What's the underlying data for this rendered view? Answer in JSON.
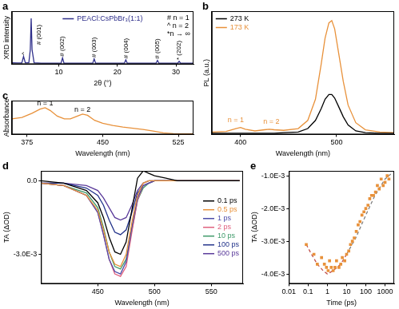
{
  "chart_data": [
    {
      "title": "a",
      "type": "line",
      "x_label": "2θ (°)",
      "y_label": "XRD intensity",
      "x": [
        2,
        3,
        3.7,
        4.0,
        4.3,
        4.9,
        5.15,
        5.3,
        5.45,
        5.8,
        7,
        9,
        10.4,
        10.65,
        10.9,
        13,
        15.8,
        16.05,
        16.3,
        19,
        21.2,
        21.45,
        21.7,
        24,
        26.6,
        26.85,
        27.1,
        29,
        30.3,
        30.55,
        30.8,
        33
      ],
      "series": [
        {
          "name": "PEACl:CsPbBr₃(1:1)",
          "color": "#2e2e8a",
          "values": [
            3,
            2.5,
            2.5,
            16,
            3,
            3,
            30,
            95,
            30,
            3,
            2,
            2,
            2,
            13,
            2,
            2,
            2,
            11,
            2,
            2,
            2,
            9,
            2,
            2,
            2,
            8,
            2,
            2,
            2,
            6,
            2,
            2
          ]
        }
      ],
      "xlim": [
        2,
        33
      ],
      "xticks": [
        10,
        20,
        30
      ],
      "ylim": [
        0,
        110
      ],
      "yticks": [],
      "tick_labels": "x",
      "grid": false,
      "legend": "upper center",
      "annotations": [
        {
          "text": "^",
          "x": 4.0,
          "y": 19
        },
        {
          "text": "# (001)",
          "x": 6.6,
          "y": 40
        },
        {
          "text": "# (002)",
          "x": 10.65,
          "y": 16
        },
        {
          "text": "# (003)",
          "x": 16.05,
          "y": 14
        },
        {
          "text": "# (004)",
          "x": 21.45,
          "y": 12
        },
        {
          "text": "# (005)",
          "x": 26.85,
          "y": 11
        },
        {
          "text": "* (202)",
          "x": 30.55,
          "y": 9
        },
        {
          "text": "# n = 1"
        },
        {
          "text": "^ n = 2"
        },
        {
          "text": "*n → ∞"
        }
      ]
    },
    {
      "title": "b",
      "type": "line",
      "x_label": "Wavelength (nm)",
      "y_label": "PL (a.u.)",
      "x": [
        370,
        385,
        395,
        400,
        405,
        415,
        425,
        430,
        435,
        445,
        460,
        470,
        478,
        484,
        488,
        492,
        495,
        498,
        502,
        507,
        512,
        520,
        530,
        545,
        560
      ],
      "series": [
        {
          "name": "273 K",
          "color": "#000000",
          "values": [
            1,
            1,
            1,
            1,
            1,
            1,
            1,
            1,
            1,
            1.5,
            2,
            5,
            12,
            22,
            30,
            34,
            34,
            31,
            24,
            15,
            8,
            3,
            1.5,
            1,
            1
          ]
        },
        {
          "name": "173 K",
          "color": "#e8913a",
          "values": [
            2,
            2.5,
            5,
            6,
            4.5,
            3,
            4,
            4.5,
            4,
            3.5,
            5,
            12,
            30,
            60,
            82,
            95,
            97,
            90,
            70,
            45,
            25,
            10,
            4,
            2,
            1.5
          ]
        }
      ],
      "xlim": [
        370,
        560
      ],
      "xticks": [
        400,
        500
      ],
      "ylim": [
        0,
        105
      ],
      "yticks": [],
      "tick_labels": "x",
      "grid": false,
      "legend": "upper left",
      "annotations": [
        {
          "text": "n = 1",
          "x": 395,
          "y": 9,
          "color": "#e8913a"
        },
        {
          "text": "n = 2",
          "x": 432,
          "y": 8,
          "color": "#e8913a"
        }
      ]
    },
    {
      "title": "c",
      "type": "line",
      "x_label": "Wavelength (nm)",
      "y_label": "Absorbance",
      "x": [
        360,
        370,
        380,
        388,
        393,
        398,
        405,
        412,
        418,
        425,
        430,
        435,
        442,
        450,
        460,
        470,
        480,
        490,
        500,
        510,
        520,
        530,
        540
      ],
      "series": [
        {
          "color": "#e8913a",
          "values": [
            0.55,
            0.6,
            0.75,
            0.9,
            0.95,
            0.85,
            0.65,
            0.55,
            0.55,
            0.65,
            0.72,
            0.68,
            0.5,
            0.4,
            0.32,
            0.26,
            0.22,
            0.18,
            0.12,
            0.06,
            0.03,
            0.02,
            0.02
          ]
        }
      ],
      "xlim": [
        360,
        540
      ],
      "xticks": [
        375,
        450,
        525
      ],
      "ylim": [
        0,
        1.2
      ],
      "yticks": [],
      "tick_labels": "x",
      "grid": false,
      "annotations": [
        {
          "text": "n = 1",
          "x": 393,
          "y": 0.98
        },
        {
          "text": "n = 2",
          "x": 430,
          "y": 0.75
        }
      ]
    },
    {
      "title": "d",
      "type": "line",
      "x_label": "Wavelength (nm)",
      "y_label": "TA (ΔOD)",
      "x": [
        400,
        420,
        440,
        450,
        455,
        460,
        465,
        470,
        475,
        480,
        485,
        490,
        495,
        500,
        510,
        520,
        540,
        560,
        575
      ],
      "series": [
        {
          "name": "0.1 ps",
          "color": "#000000",
          "values": [
            0,
            -0.0001,
            -0.0004,
            -0.0009,
            -0.0015,
            -0.0023,
            -0.0029,
            -0.003,
            -0.0025,
            -0.0012,
            0.0001,
            0.0004,
            0.0003,
            0.0002,
            0.0001,
            0,
            0,
            0,
            0
          ]
        },
        {
          "name": "0.5 ps",
          "color": "#e8913a",
          "values": [
            -0.0001,
            -0.0002,
            -0.0006,
            -0.0012,
            -0.002,
            -0.0029,
            -0.0034,
            -0.0035,
            -0.003,
            -0.0017,
            -0.0006,
            -0.0001,
            0,
            0,
            0,
            0,
            0,
            0,
            0
          ]
        },
        {
          "name": "1 ps",
          "color": "#4b4ba8",
          "values": [
            -0.0001,
            -0.0002,
            -0.0006,
            -0.0013,
            -0.0022,
            -0.0032,
            -0.0037,
            -0.0038,
            -0.0033,
            -0.0019,
            -0.0007,
            -0.0002,
            -0.0001,
            0,
            0,
            0,
            0,
            0,
            0
          ]
        },
        {
          "name": "2 ps",
          "color": "#e0607e",
          "values": [
            -0.0001,
            -0.0002,
            -0.0006,
            -0.0013,
            -0.0022,
            -0.0032,
            -0.0038,
            -0.0039,
            -0.0035,
            -0.0021,
            -0.0008,
            -0.0002,
            -0.0001,
            0,
            0,
            0,
            0,
            0,
            0
          ]
        },
        {
          "name": "10 ps",
          "color": "#3f9a6a",
          "values": [
            -0.0001,
            -0.0002,
            -0.0005,
            -0.0011,
            -0.0019,
            -0.0029,
            -0.0035,
            -0.0036,
            -0.0032,
            -0.002,
            -0.0008,
            -0.0003,
            -0.0001,
            0,
            0,
            0,
            0,
            0,
            0
          ]
        },
        {
          "name": "100 ps",
          "color": "#22338a",
          "values": [
            -0.0001,
            -0.0001,
            -0.0003,
            -0.0006,
            -0.001,
            -0.0016,
            -0.0021,
            -0.0022,
            -0.002,
            -0.0013,
            -0.0005,
            -0.0002,
            -0.0001,
            0,
            0,
            0,
            0,
            0,
            0
          ]
        },
        {
          "name": "500 ps",
          "color": "#5a3a9a",
          "values": [
            -0.0001,
            -0.0001,
            -0.0002,
            -0.0004,
            -0.0007,
            -0.0011,
            -0.0015,
            -0.0016,
            -0.0015,
            -0.001,
            -0.0004,
            -0.0001,
            0,
            0,
            0,
            0,
            0,
            0,
            0
          ]
        }
      ],
      "xlim": [
        400,
        578
      ],
      "xticks": [
        450,
        500,
        550
      ],
      "ylim": [
        -0.0042,
        0.0004
      ],
      "yticks": [
        {
          "value": -0.003,
          "label": "-3.0E-3"
        },
        {
          "value": 0,
          "label": "0.0"
        }
      ],
      "grid": false,
      "legend": "center right"
    },
    {
      "title": "e",
      "type": "scatter",
      "x_label": "Time (ps)",
      "y_label": "TA (ΔOD)",
      "log": "x",
      "series": [
        {
          "type": "scatter",
          "marker": "square",
          "color": "#e8913a",
          "x": [
            0.08,
            0.2,
            0.3,
            0.5,
            0.7,
            0.9,
            1.1,
            1.3,
            1.6,
            2,
            2.5,
            3,
            4,
            5,
            6,
            8,
            10,
            13,
            16,
            20,
            25,
            32,
            40,
            50,
            63,
            80,
            100,
            130,
            160,
            200,
            250,
            320,
            400,
            500,
            630,
            800,
            1000,
            1300,
            1600
          ],
          "values": [
            -0.0031,
            -0.0034,
            -0.0037,
            -0.0035,
            -0.0037,
            -0.0038,
            -0.0039,
            -0.0036,
            -0.0038,
            -0.0039,
            -0.0038,
            -0.0036,
            -0.0038,
            -0.0037,
            -0.0035,
            -0.0036,
            -0.0034,
            -0.0033,
            -0.0031,
            -0.003,
            -0.0029,
            -0.0027,
            -0.0025,
            -0.0024,
            -0.0022,
            -0.0021,
            -0.002,
            -0.0019,
            -0.0017,
            -0.0016,
            -0.0016,
            -0.0015,
            -0.0013,
            -0.0014,
            -0.0011,
            -0.0013,
            -0.0012,
            -0.001,
            -0.0011
          ]
        },
        {
          "type": "line",
          "line_style": "dashed",
          "color": "#c0504d",
          "x": [
            0.08,
            0.15,
            0.3,
            0.6,
            1,
            2,
            5,
            10
          ],
          "values": [
            -0.0031,
            -0.0034,
            -0.0037,
            -0.0039,
            -0.004,
            -0.0039,
            -0.0037,
            -0.0034
          ]
        },
        {
          "type": "line",
          "line_style": "dashed",
          "color": "#808080",
          "x": [
            10,
            30,
            100,
            300,
            1000,
            2000
          ],
          "values": [
            -0.0034,
            -0.0029,
            -0.0022,
            -0.0016,
            -0.0011,
            -0.00095
          ]
        }
      ],
      "xlim": [
        0.01,
        3000
      ],
      "xticks": [
        0.01,
        0.1,
        1,
        10,
        100,
        1000
      ],
      "ylim": [
        -0.0043,
        -0.00085
      ],
      "yticks": [
        {
          "value": -0.004,
          "label": "-4.0E-3"
        },
        {
          "value": -0.003,
          "label": "-3.0E-3"
        },
        {
          "value": -0.002,
          "label": "-2.0E-3"
        },
        {
          "value": -0.001,
          "label": "-1.0E-3"
        }
      ],
      "grid": false
    }
  ]
}
